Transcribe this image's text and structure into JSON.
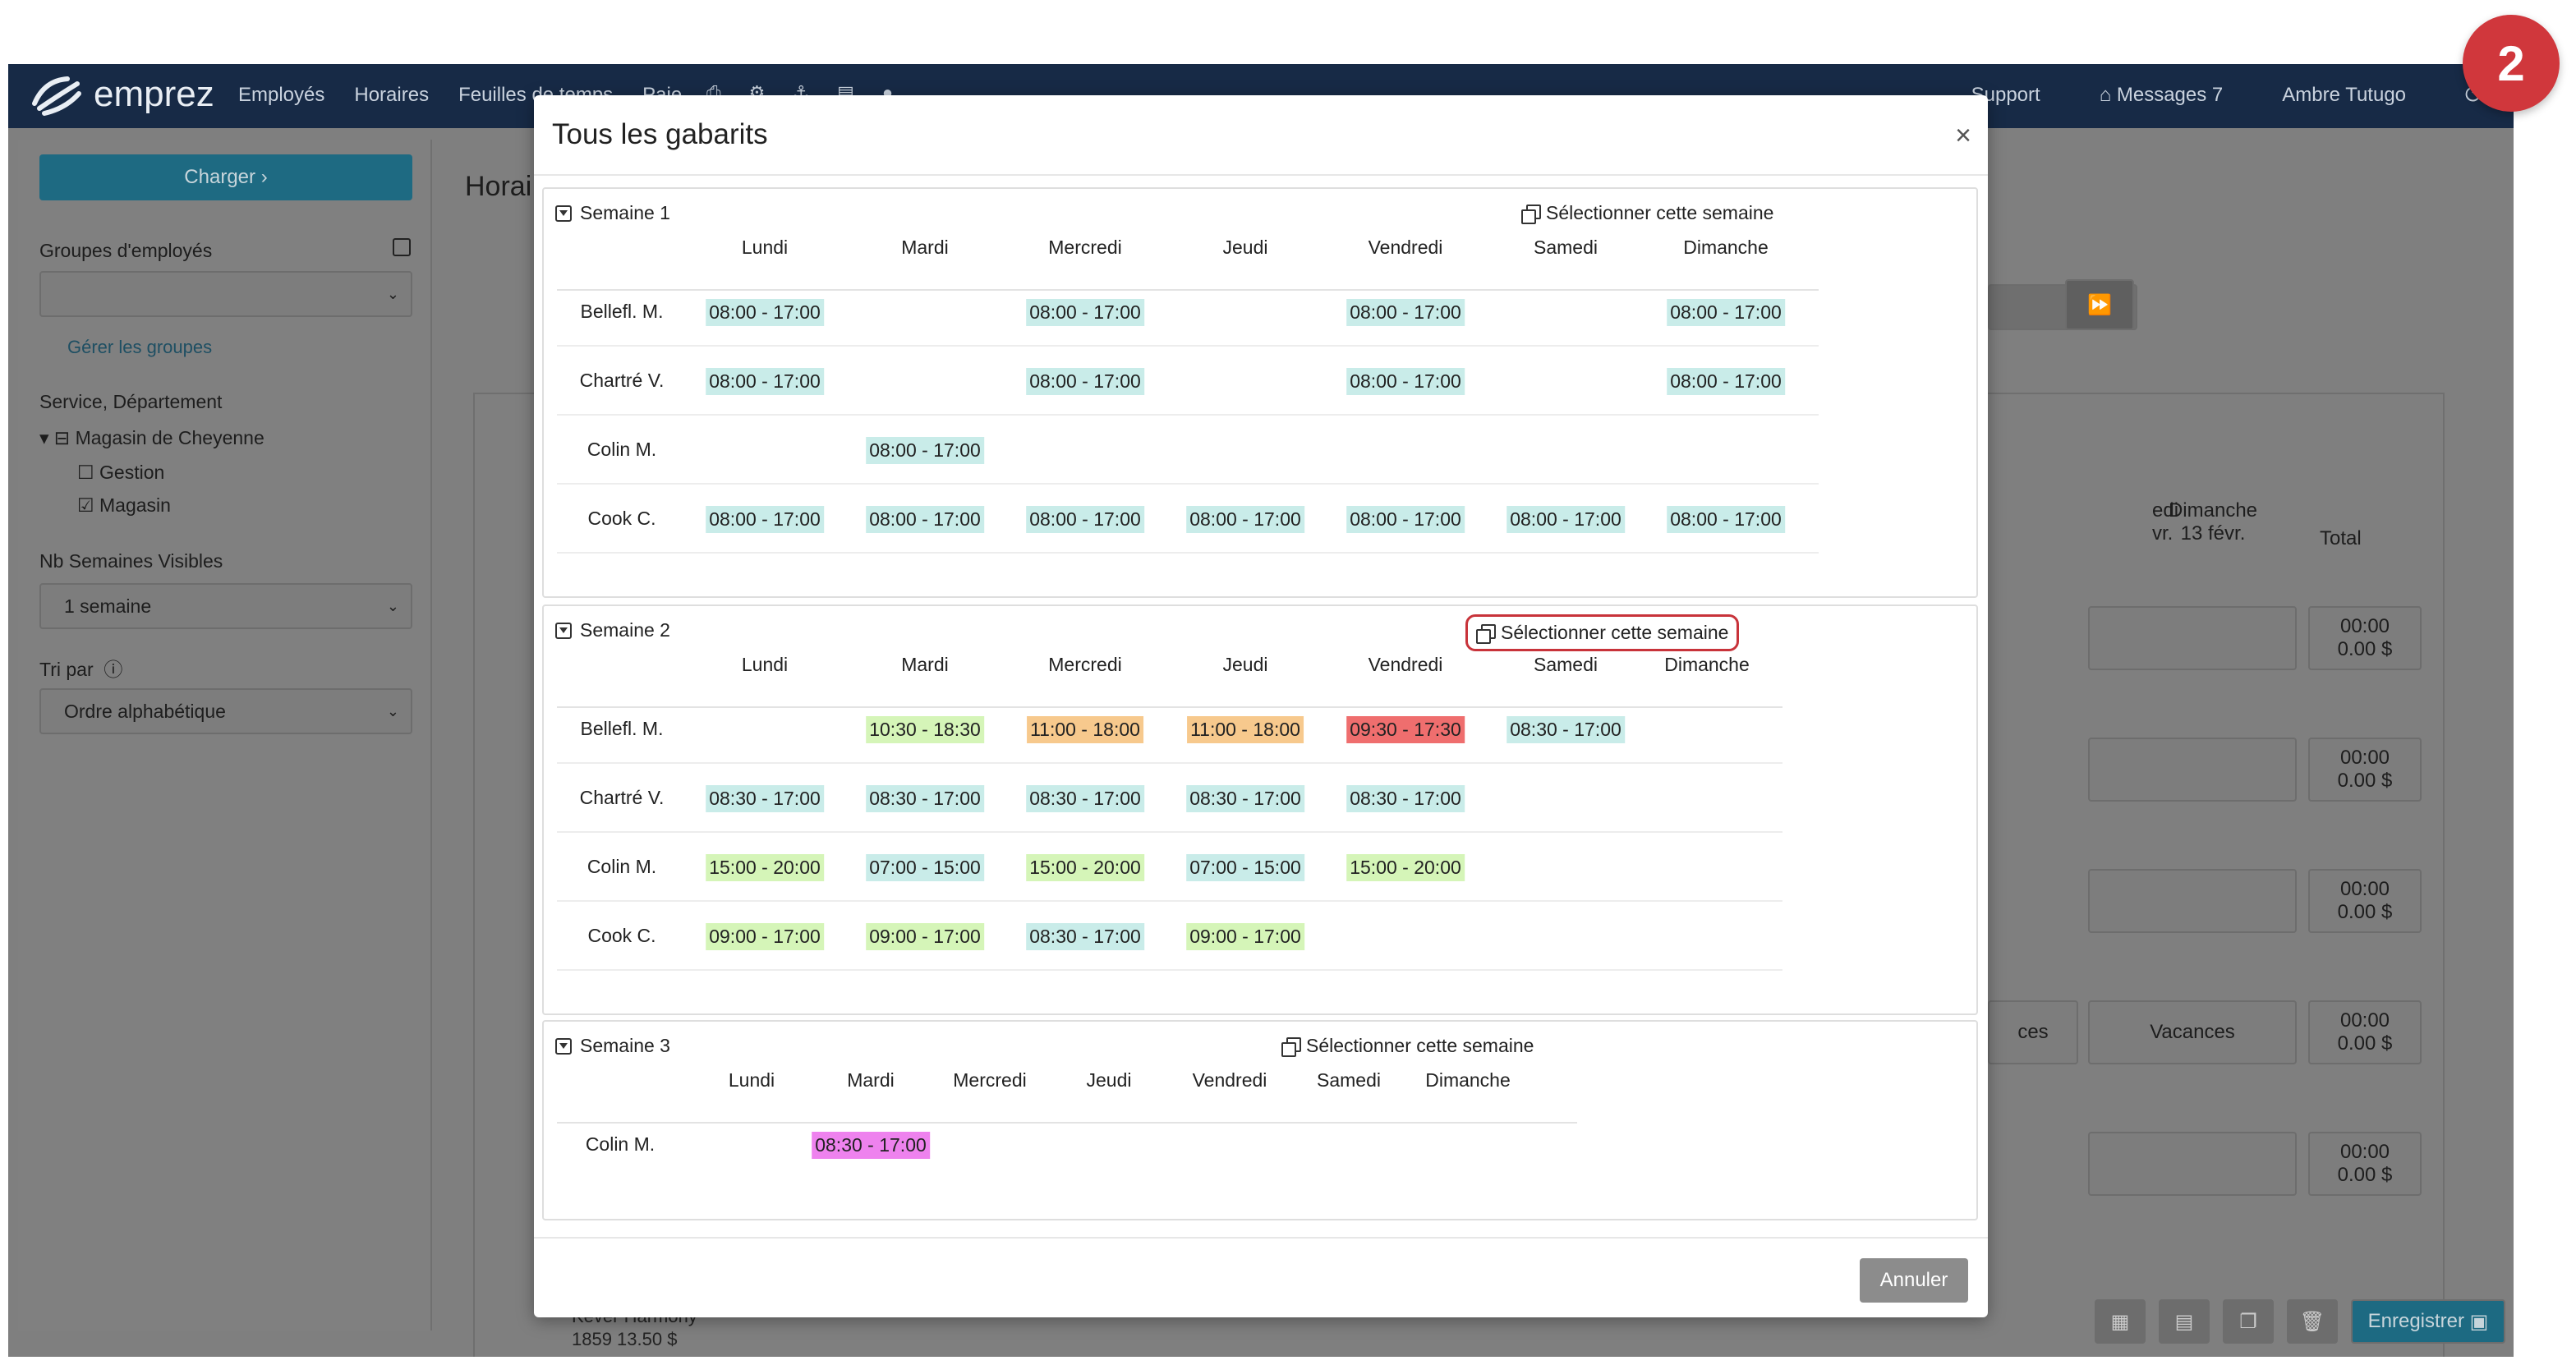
{
  "nav": {
    "brand": "emprez",
    "links": [
      "Employés",
      "Horaires",
      "Feuilles de temps",
      "Paie"
    ],
    "support": "Support",
    "messages": "Messages 7",
    "user": "Ambre Tutugo"
  },
  "step_badge": "2",
  "sidebar": {
    "charger": "Charger",
    "groups_label": "Groupes d'employés",
    "manage_groups": "Gérer les groupes",
    "service_label": "Service, Département",
    "store": "Magasin de Cheyenne",
    "sub_items": [
      "Gestion",
      "Magasin"
    ],
    "weeks_label": "Nb Semaines Visibles",
    "weeks_value": "1 semaine",
    "sort_label": "Tri par",
    "sort_value": "Ordre alphabétique"
  },
  "background": {
    "title": "Horai",
    "col_dimanche": "Dimanche",
    "col_dimanche_date": "13 févr.",
    "col_total": "Total",
    "col_partial": "edi",
    "col_partial_date": "vr.",
    "vacances": "Vacances",
    "vacances_partial": "ces",
    "total_time": "00:00",
    "total_money": "0.00 $",
    "bottom_name": "Kever Harmony",
    "bottom_info": "1859 13.50 $",
    "save": "Enregistrer"
  },
  "modal": {
    "title": "Tous les gabarits",
    "close": "×",
    "cancel": "Annuler",
    "select_week_label": "Sélectionner cette semaine",
    "weeks": [
      {
        "label": "Semaine 1",
        "days": [
          "Lundi",
          "Mardi",
          "Mercredi",
          "Jeudi",
          "Vendredi",
          "Samedi",
          "Dimanche"
        ],
        "rows": [
          {
            "name": "Bellefl. M.",
            "shifts": [
              "08:00 - 17:00",
              "",
              "08:00 - 17:00",
              "",
              "08:00 - 17:00",
              "",
              "08:00 - 17:00"
            ]
          },
          {
            "name": "Chartré V.",
            "shifts": [
              "08:00 - 17:00",
              "",
              "08:00 - 17:00",
              "",
              "08:00 - 17:00",
              "",
              "08:00 - 17:00"
            ]
          },
          {
            "name": "Colin M.",
            "shifts": [
              "",
              "08:00 - 17:00",
              "",
              "",
              "",
              "",
              ""
            ]
          },
          {
            "name": "Cook C.",
            "shifts": [
              "08:00 - 17:00",
              "08:00 - 17:00",
              "08:00 - 17:00",
              "08:00 - 17:00",
              "08:00 - 17:00",
              "08:00 - 17:00",
              "08:00 - 17:00"
            ]
          }
        ],
        "colors": [
          [
            "#c9ece9",
            "",
            "#c9ece9",
            "",
            "#c9ece9",
            "",
            "#c9ece9"
          ],
          [
            "#c9ece9",
            "",
            "#c9ece9",
            "",
            "#c9ece9",
            "",
            "#c9ece9"
          ],
          [
            "",
            "#c9ece9",
            "",
            "",
            "",
            "",
            ""
          ],
          [
            "#c9ece9",
            "#c9ece9",
            "#c9ece9",
            "#c9ece9",
            "#c9ece9",
            "#c9ece9",
            "#c9ece9"
          ]
        ]
      },
      {
        "label": "Semaine 2",
        "days": [
          "Lundi",
          "Mardi",
          "Mercredi",
          "Jeudi",
          "Vendredi",
          "Samedi",
          "Dimanche"
        ],
        "rows": [
          {
            "name": "Bellefl. M.",
            "shifts": [
              "",
              "10:30 - 18:30",
              "11:00 - 18:00",
              "11:00 - 18:00",
              "09:30 - 17:30",
              "08:30 - 17:00",
              ""
            ]
          },
          {
            "name": "Chartré V.",
            "shifts": [
              "08:30 - 17:00",
              "08:30 - 17:00",
              "08:30 - 17:00",
              "08:30 - 17:00",
              "08:30 - 17:00",
              "",
              ""
            ]
          },
          {
            "name": "Colin M.",
            "shifts": [
              "15:00 - 20:00",
              "07:00 - 15:00",
              "15:00 - 20:00",
              "07:00 - 15:00",
              "15:00 - 20:00",
              "",
              ""
            ]
          },
          {
            "name": "Cook C.",
            "shifts": [
              "09:00 - 17:00",
              "09:00 - 17:00",
              "08:30 - 17:00",
              "09:00 - 17:00",
              "",
              "",
              ""
            ]
          }
        ],
        "colors": [
          [
            "",
            "#d5f5b8",
            "#f7c98d",
            "#f7c98d",
            "#ef6e6e",
            "#c9ece9",
            ""
          ],
          [
            "#c9ece9",
            "#c9ece9",
            "#c9ece9",
            "#c9ece9",
            "#c9ece9",
            "",
            ""
          ],
          [
            "#d5f5b8",
            "#c9ece9",
            "#d5f5b8",
            "#c9ece9",
            "#d5f5b8",
            "",
            ""
          ],
          [
            "#d5f5b8",
            "#d5f5b8",
            "#c9ece9",
            "#d5f5b8",
            "",
            "",
            ""
          ]
        ]
      },
      {
        "label": "Semaine 3",
        "days": [
          "Lundi",
          "Mardi",
          "Mercredi",
          "Jeudi",
          "Vendredi",
          "Samedi",
          "Dimanche"
        ],
        "rows": [
          {
            "name": "Colin M.",
            "shifts": [
              "",
              "08:30 - 17:00",
              "",
              "",
              "",
              "",
              ""
            ]
          }
        ],
        "colors": [
          [
            "",
            "#ee82ee",
            "",
            "",
            "",
            "",
            ""
          ]
        ]
      }
    ]
  }
}
